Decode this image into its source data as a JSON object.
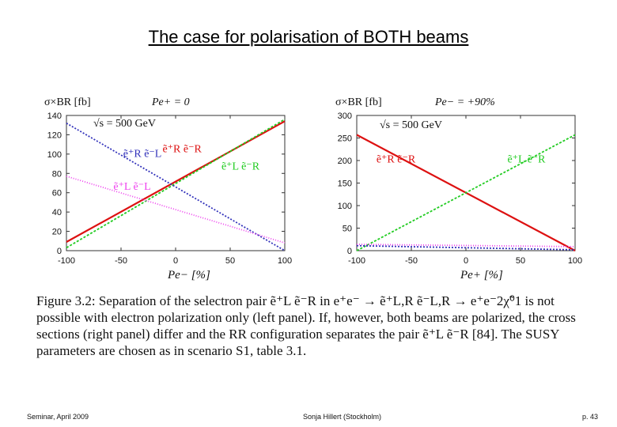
{
  "slide": {
    "title": "The case for polarisation of BOTH beams",
    "caption": "Figure 3.2: Separation of the selectron pair ẽ⁺L ẽ⁻R in e⁺e⁻ → ẽ⁺L,R ẽ⁻L,R → e⁺e⁻2χ̃⁰1 is not possible with electron polarization only (left panel). If, however, both beams are polarized, the cross sections (right panel) differ and the RR configuration separates the pair ẽ⁺L ẽ⁻R [84]. The SUSY parameters are chosen as in scenario S1, table 3.1.",
    "footer_left": "Seminar, April 2009",
    "footer_center": "Sonja Hillert (Stockholm)",
    "footer_right": "p. 43"
  },
  "colors": {
    "red": "#dd1111",
    "green": "#22cc22",
    "blue": "#3333bb",
    "magenta": "#ee44ee"
  },
  "chart_data": [
    {
      "type": "line",
      "ylabel": "σ×BR [fb]",
      "header_right": "Pe+ = 0",
      "sqrt_s": "√s = 500 GeV",
      "xlabel": "Pe− [%]",
      "xlim": [
        -100,
        100
      ],
      "ylim": [
        0,
        140
      ],
      "xticks": [
        "-100",
        "-50",
        "0",
        "50",
        "100"
      ],
      "yticks": [
        "0",
        "20",
        "40",
        "60",
        "80",
        "100",
        "120",
        "140"
      ],
      "series": [
        {
          "name": "ẽ⁺R ẽ⁻R",
          "color": "#dd1111",
          "x": [
            -100,
            100
          ],
          "y": [
            9,
            134
          ]
        },
        {
          "name": "ẽ⁺L ẽ⁻R",
          "color": "#22cc22",
          "x": [
            -100,
            100
          ],
          "y": [
            3,
            136
          ]
        },
        {
          "name": "ẽ⁺R ẽ⁻L",
          "color": "#3333bb",
          "x": [
            -100,
            100
          ],
          "y": [
            132,
            0
          ]
        },
        {
          "name": "ẽ⁺L ẽ⁻L",
          "color": "#ee44ee",
          "x": [
            -100,
            100
          ],
          "y": [
            77,
            8
          ]
        }
      ],
      "annotations": [
        {
          "text": "ẽ⁺R ẽ⁻R",
          "series": 0,
          "x": -12,
          "y": 102
        },
        {
          "text": "ẽ⁺L ẽ⁻R",
          "series": 1,
          "x": 42,
          "y": 84
        },
        {
          "text": "ẽ⁺R ẽ⁻L",
          "series": 2,
          "x": -48,
          "y": 97
        },
        {
          "text": "ẽ⁺L ẽ⁻L",
          "series": 3,
          "x": -57,
          "y": 63
        }
      ]
    },
    {
      "type": "line",
      "ylabel": "σ×BR [fb]",
      "header_right": "Pe− = +90%",
      "sqrt_s": "√s = 500 GeV",
      "xlabel": "Pe+ [%]",
      "xlim": [
        -100,
        100
      ],
      "ylim": [
        0,
        300
      ],
      "xticks": [
        "-100",
        "-50",
        "0",
        "50",
        "100"
      ],
      "yticks": [
        "0",
        "50",
        "100",
        "150",
        "200",
        "250",
        "300"
      ],
      "series": [
        {
          "name": "ẽ⁺R ẽ⁻R",
          "color": "#dd1111",
          "x": [
            -100,
            100
          ],
          "y": [
            257,
            0
          ]
        },
        {
          "name": "ẽ⁺L ẽ⁻R",
          "color": "#22cc22",
          "x": [
            -100,
            100
          ],
          "y": [
            0,
            257
          ]
        },
        {
          "name": "ẽ⁺R ẽ⁻L",
          "color": "#3333bb",
          "x": [
            -100,
            100
          ],
          "y": [
            11,
            2
          ]
        },
        {
          "name": "ẽ⁺L ẽ⁻L",
          "color": "#ee44ee",
          "x": [
            -100,
            100
          ],
          "y": [
            14,
            9
          ]
        }
      ],
      "annotations": [
        {
          "text": "ẽ⁺R ẽ⁻R",
          "series": 0,
          "x": -82,
          "y": 196
        },
        {
          "text": "ẽ⁺L ẽ⁻R",
          "series": 1,
          "x": 38,
          "y": 196
        }
      ]
    }
  ]
}
